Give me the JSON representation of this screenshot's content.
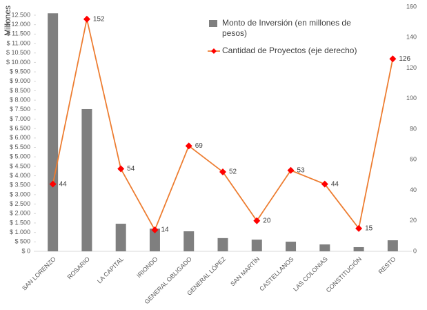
{
  "chart_data": {
    "type": "bar_line",
    "y_label": "Millones",
    "categories": [
      "SAN LORENZO",
      "ROSARIO",
      "LA CAPITAL",
      "IRIONDO",
      "GENERAL OBLIGADO",
      "GENERAL LÓPEZ",
      "SAN MARTÍN",
      "CASTELLANOS",
      "LAS COLONIAS",
      "CONSTITUCIÓN",
      "RESTO"
    ],
    "series": [
      {
        "name": "Monto de Inversión (en millones de pesos)",
        "type": "bar",
        "color": "#7f7f7f",
        "axis": "y",
        "values": [
          12600,
          7530,
          1460,
          1200,
          1060,
          700,
          620,
          510,
          365,
          220,
          585
        ]
      },
      {
        "name": "Cantidad de Proyectos (eje derecho)",
        "type": "line",
        "color": "#ed7d31",
        "marker_color": "#ff0000",
        "axis": "y2",
        "values": [
          44,
          152,
          54,
          14,
          69,
          52,
          20,
          53,
          44,
          15,
          126
        ]
      }
    ],
    "ylim": [
      0,
      12500
    ],
    "yticks": [
      {
        "value": 0,
        "label": "$ 0"
      },
      {
        "value": 500,
        "label": "$ 500"
      },
      {
        "value": 1000,
        "label": "$ 1.000"
      },
      {
        "value": 1500,
        "label": "$ 1.500"
      },
      {
        "value": 2000,
        "label": "$ 2.000"
      },
      {
        "value": 2500,
        "label": "$ 2.500"
      },
      {
        "value": 3000,
        "label": "$ 3.000"
      },
      {
        "value": 3500,
        "label": "$ 3.500"
      },
      {
        "value": 4000,
        "label": "$ 4.000"
      },
      {
        "value": 4500,
        "label": "$ 4.500"
      },
      {
        "value": 5000,
        "label": "$ 5.000"
      },
      {
        "value": 5500,
        "label": "$ 5.500"
      },
      {
        "value": 6000,
        "label": "$ 6.000"
      },
      {
        "value": 6500,
        "label": "$ 6.500"
      },
      {
        "value": 7000,
        "label": "$ 7.000"
      },
      {
        "value": 7500,
        "label": "$ 7.500"
      },
      {
        "value": 8000,
        "label": "$ 8.000"
      },
      {
        "value": 8500,
        "label": "$ 8.500"
      },
      {
        "value": 9000,
        "label": "$ 9.000"
      },
      {
        "value": 9500,
        "label": "$ 9.500"
      },
      {
        "value": 10000,
        "label": "$ 10.000"
      },
      {
        "value": 10500,
        "label": "$ 10.500"
      },
      {
        "value": 11000,
        "label": "$ 11.000"
      },
      {
        "value": 11500,
        "label": "$ 11.500"
      },
      {
        "value": 12000,
        "label": "$ 12.000"
      },
      {
        "value": 12500,
        "label": "12.500"
      }
    ],
    "y2lim": [
      0,
      160
    ],
    "y2ticks": [
      0,
      20,
      40,
      60,
      80,
      100,
      120,
      140,
      160
    ],
    "legend": "top-center"
  }
}
